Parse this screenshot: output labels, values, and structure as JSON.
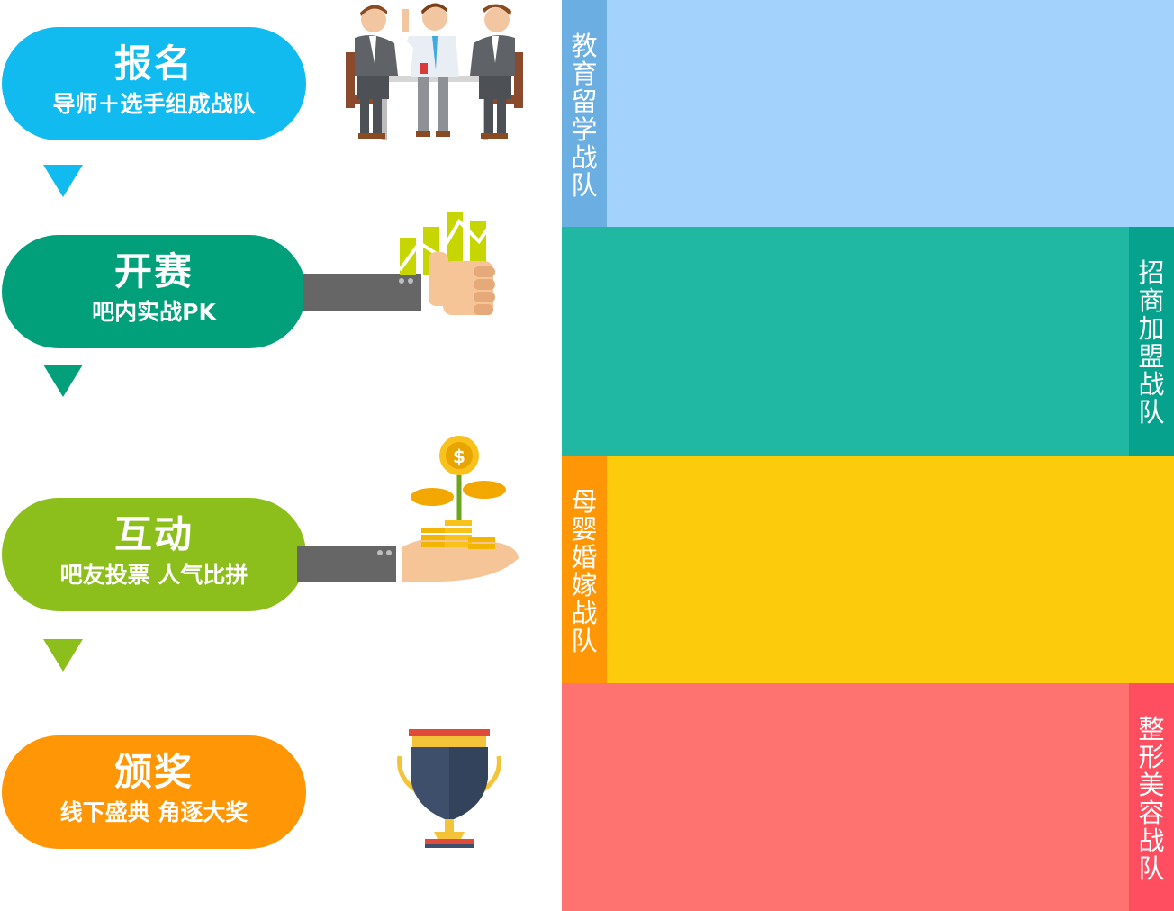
{
  "steps": [
    {
      "title": "报名",
      "subtitle": "导师＋选手组成战队",
      "color": "#11bbf0"
    },
    {
      "title": "开赛",
      "subtitle": "吧内实战PK",
      "color": "#01a07a"
    },
    {
      "title": "互动",
      "subtitle": "吧友投票 人气比拼",
      "color": "#8cbf1c"
    },
    {
      "title": "颁奖",
      "subtitle": "线下盛典 角逐大奖",
      "color": "#fe9606"
    }
  ],
  "teams": [
    {
      "label": "教育留学战队",
      "band_color": "#a3d2fd",
      "tab_color": "#6aaee2",
      "tab_side": "left"
    },
    {
      "label": "招商加盟战队",
      "band_color": "#21b8a3",
      "tab_color": "#07a28e",
      "tab_side": "right"
    },
    {
      "label": "母婴婚嫁战队",
      "band_color": "#fccb0c",
      "tab_color": "#fe9606",
      "tab_side": "left"
    },
    {
      "label": "整形美容战队",
      "band_color": "#fe736f",
      "tab_color": "#ff4e60",
      "tab_side": "right"
    }
  ],
  "icons": [
    "meeting-illustration",
    "thumbs-up-chart-illustration",
    "coin-plant-hand-illustration",
    "trophy-illustration"
  ]
}
